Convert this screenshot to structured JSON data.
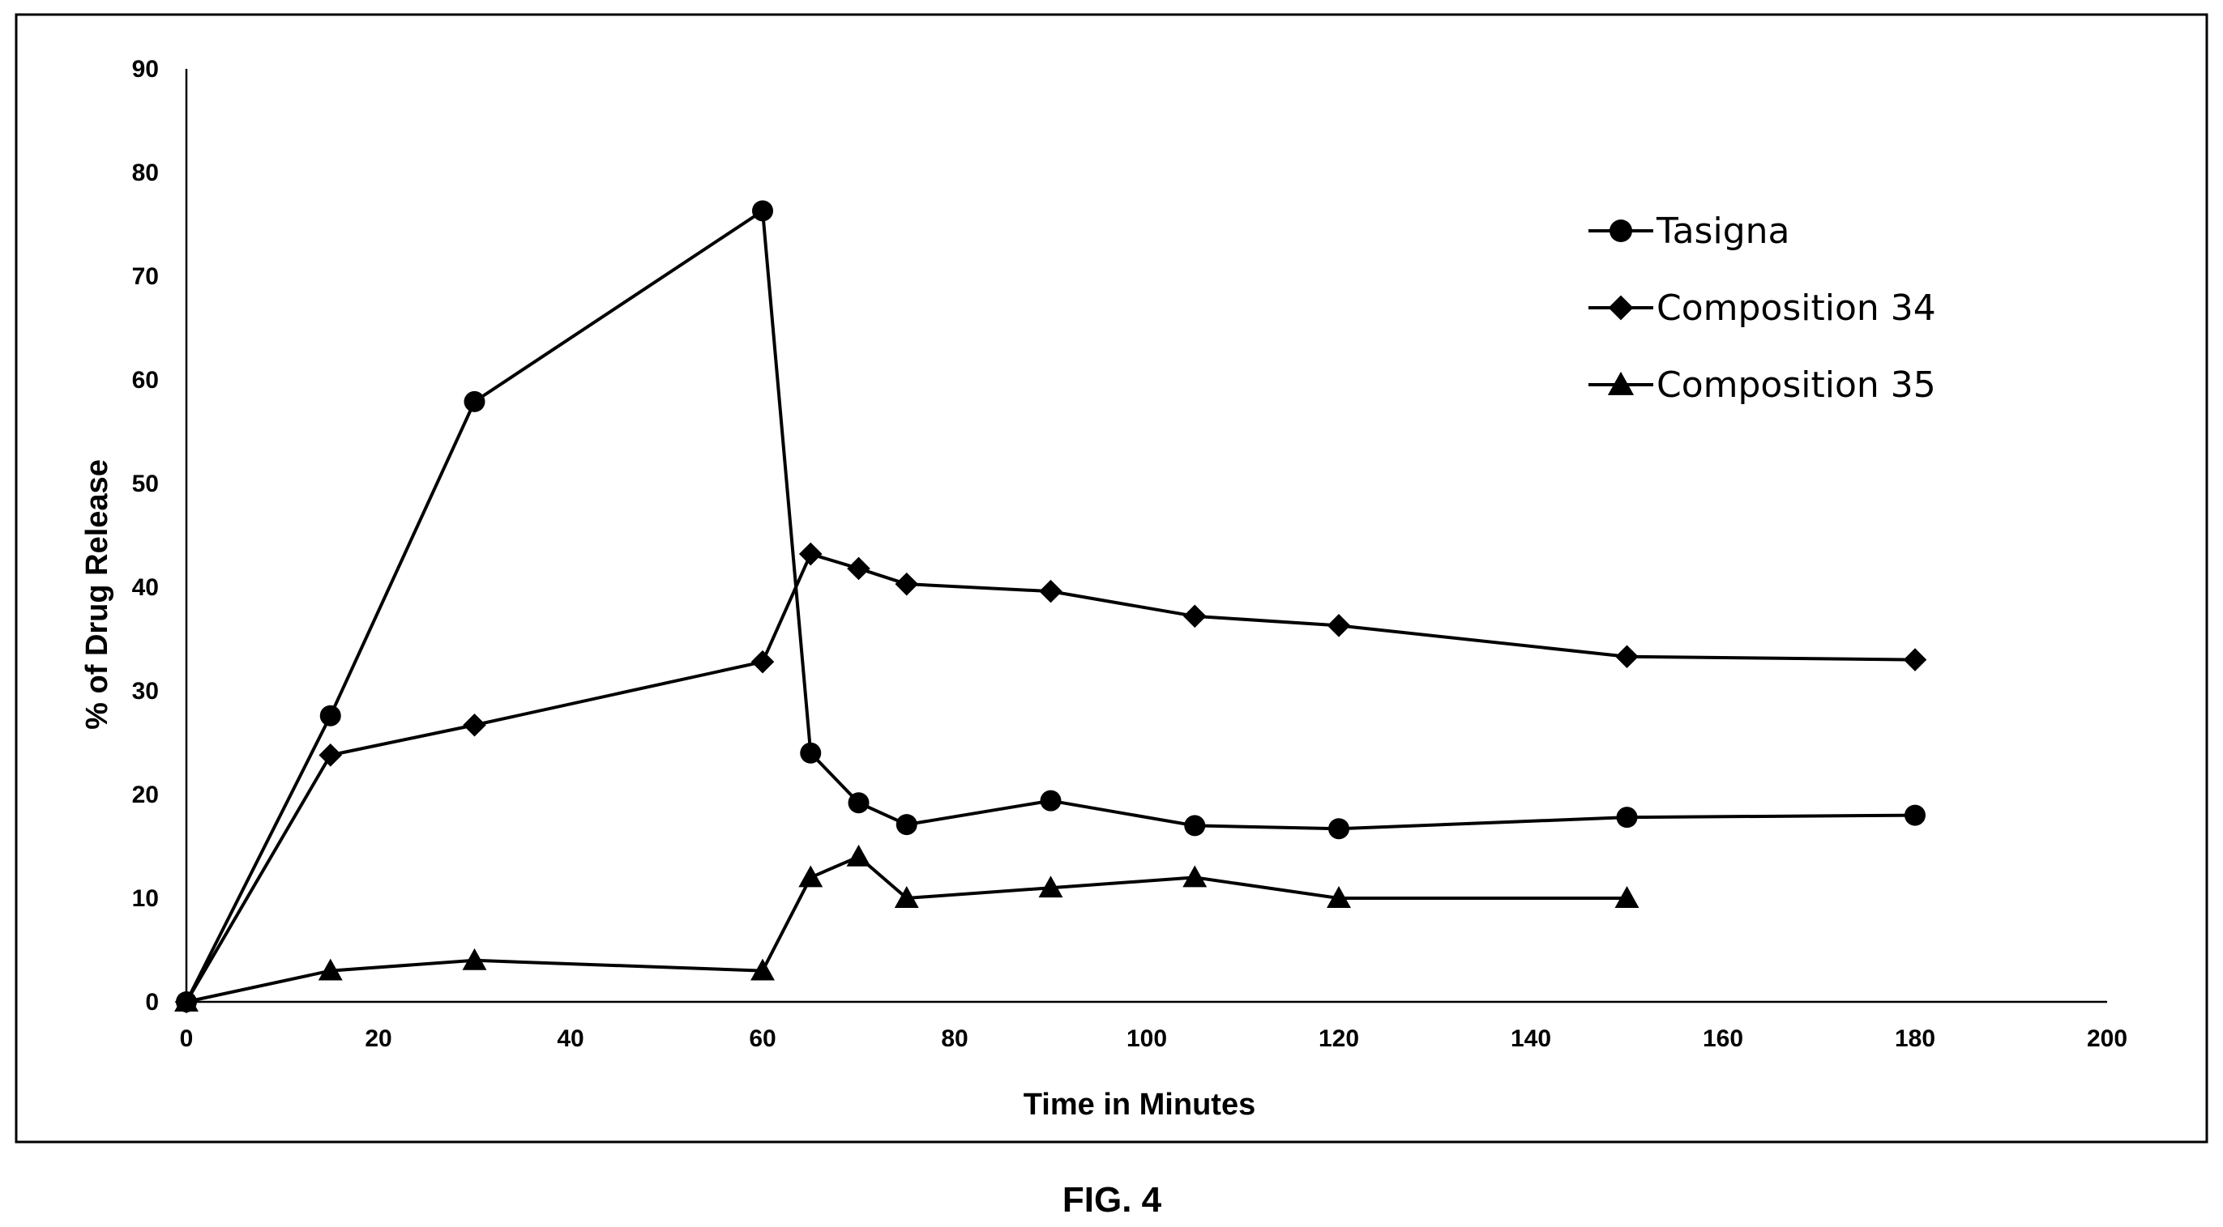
{
  "caption": "FIG. 4",
  "chart_data": {
    "type": "line",
    "title": "",
    "xlabel": "Time in Minutes",
    "ylabel": "% of Drug Release",
    "xlim": [
      0,
      200
    ],
    "ylim": [
      0,
      90
    ],
    "xticks": [
      0,
      20,
      40,
      60,
      80,
      100,
      120,
      140,
      160,
      180,
      200
    ],
    "yticks": [
      0,
      10,
      20,
      30,
      40,
      50,
      60,
      70,
      80,
      90
    ],
    "grid": false,
    "legend_position": "top-right",
    "series": [
      {
        "name": "Tasigna",
        "marker": "circle",
        "color": "#000000",
        "x": [
          0,
          15,
          30,
          60,
          65,
          70,
          75,
          90,
          105,
          120,
          150,
          180
        ],
        "y": [
          0,
          27.6,
          57.9,
          76.3,
          24.0,
          19.2,
          17.1,
          19.4,
          17.0,
          16.7,
          17.8,
          18.0
        ]
      },
      {
        "name": "Composition 34",
        "marker": "diamond",
        "color": "#000000",
        "x": [
          0,
          15,
          30,
          60,
          65,
          70,
          75,
          90,
          105,
          120,
          150,
          180
        ],
        "y": [
          0,
          23.8,
          26.7,
          32.8,
          43.2,
          41.8,
          40.3,
          39.6,
          37.2,
          36.3,
          33.3,
          33.0
        ]
      },
      {
        "name": "Composition 35",
        "marker": "triangle",
        "color": "#000000",
        "x": [
          0,
          15,
          30,
          60,
          65,
          70,
          75,
          90,
          105,
          120,
          150
        ],
        "y": [
          0,
          3,
          4,
          3,
          12,
          14,
          10,
          11,
          12,
          10,
          10
        ]
      }
    ]
  }
}
